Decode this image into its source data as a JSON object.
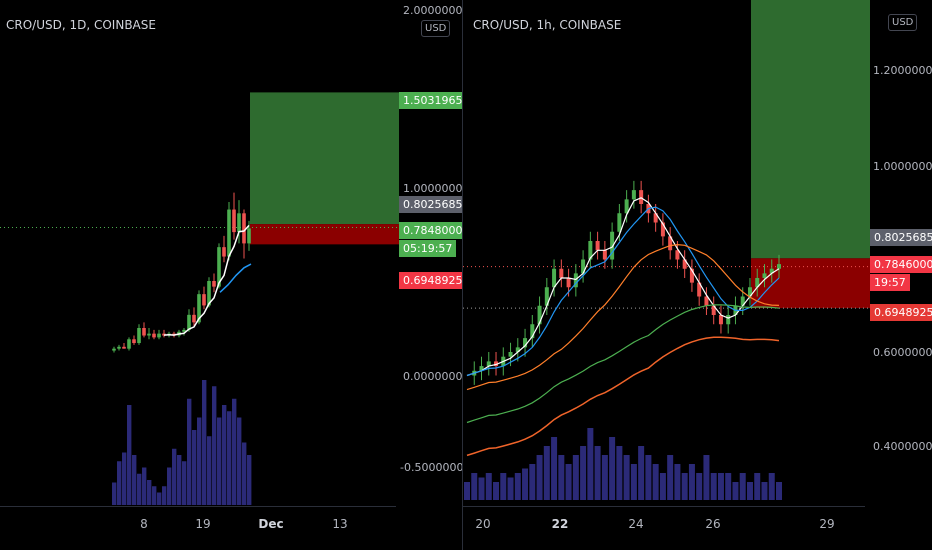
{
  "colors": {
    "up": "#4caf50",
    "down": "#ef5350",
    "profit_zone": "#2e6b2f",
    "loss_zone": "#8b0000",
    "volume": "#2b2a78",
    "ma_white": "#ffffff",
    "ma_blue": "#2196f3",
    "ma_orange": "#ff7f2a",
    "ma_green": "#4caf50",
    "ma_darkorange": "#f0642a"
  },
  "left_chart": {
    "title": "CRO/USD, 1D, COINBASE",
    "currency_button": "USD",
    "y_ticks": [
      "2.00000000",
      "1.00000000",
      "0.00000000",
      "-0.50000000"
    ],
    "x_ticks": [
      {
        "label": "8",
        "bold": false
      },
      {
        "label": "19",
        "bold": false
      },
      {
        "label": "Dec",
        "bold": true
      },
      {
        "label": "13",
        "bold": false
      }
    ],
    "tags": {
      "target": "1.50319655",
      "entry": "0.80256850",
      "last_price": "0.78480000",
      "countdown": "05:19:57",
      "stop": "0.69489253"
    }
  },
  "right_chart": {
    "title": "CRO/USD, 1h, COINBASE",
    "currency_button": "USD",
    "y_ticks": [
      "1.20000000",
      "1.00000000",
      "0.60000000",
      "0.40000000"
    ],
    "x_ticks": [
      {
        "label": "20",
        "bold": false
      },
      {
        "label": "22",
        "bold": true
      },
      {
        "label": "24",
        "bold": false
      },
      {
        "label": "26",
        "bold": false
      },
      {
        "label": "29",
        "bold": false
      }
    ],
    "tags": {
      "entry": "0.80256850",
      "last_price": "0.78460000",
      "countdown": "19:57",
      "stop": "0.69489253"
    }
  },
  "chart_data": [
    {
      "type": "candlestick",
      "title": "CRO/USD, 1D, COINBASE",
      "currency": "USD",
      "x_tick_labels": [
        "8",
        "19",
        "Dec",
        "13"
      ],
      "y_tick_labels": [
        "2.00000000",
        "1.00000000",
        "0.00000000",
        "-0.50000000"
      ],
      "long_position": {
        "entry": 0.8025685,
        "target": 1.50319655,
        "stop": 0.69489253
      },
      "last_price": 0.7848,
      "candles": [
        {
          "o": 0.13,
          "h": 0.15,
          "l": 0.12,
          "c": 0.14
        },
        {
          "o": 0.14,
          "h": 0.16,
          "l": 0.13,
          "c": 0.15
        },
        {
          "o": 0.15,
          "h": 0.17,
          "l": 0.14,
          "c": 0.14
        },
        {
          "o": 0.14,
          "h": 0.2,
          "l": 0.13,
          "c": 0.19
        },
        {
          "o": 0.19,
          "h": 0.21,
          "l": 0.16,
          "c": 0.17
        },
        {
          "o": 0.17,
          "h": 0.27,
          "l": 0.16,
          "c": 0.25
        },
        {
          "o": 0.25,
          "h": 0.28,
          "l": 0.2,
          "c": 0.21
        },
        {
          "o": 0.21,
          "h": 0.25,
          "l": 0.19,
          "c": 0.22
        },
        {
          "o": 0.22,
          "h": 0.24,
          "l": 0.19,
          "c": 0.2
        },
        {
          "o": 0.2,
          "h": 0.24,
          "l": 0.19,
          "c": 0.22
        },
        {
          "o": 0.22,
          "h": 0.24,
          "l": 0.2,
          "c": 0.21
        },
        {
          "o": 0.21,
          "h": 0.23,
          "l": 0.2,
          "c": 0.22
        },
        {
          "o": 0.22,
          "h": 0.23,
          "l": 0.2,
          "c": 0.21
        },
        {
          "o": 0.21,
          "h": 0.24,
          "l": 0.2,
          "c": 0.23
        },
        {
          "o": 0.23,
          "h": 0.25,
          "l": 0.21,
          "c": 0.24
        },
        {
          "o": 0.24,
          "h": 0.35,
          "l": 0.23,
          "c": 0.32
        },
        {
          "o": 0.32,
          "h": 0.36,
          "l": 0.26,
          "c": 0.28
        },
        {
          "o": 0.28,
          "h": 0.45,
          "l": 0.27,
          "c": 0.43
        },
        {
          "o": 0.43,
          "h": 0.47,
          "l": 0.35,
          "c": 0.37
        },
        {
          "o": 0.37,
          "h": 0.52,
          "l": 0.36,
          "c": 0.5
        },
        {
          "o": 0.5,
          "h": 0.54,
          "l": 0.44,
          "c": 0.47
        },
        {
          "o": 0.47,
          "h": 0.7,
          "l": 0.46,
          "c": 0.68
        },
        {
          "o": 0.68,
          "h": 0.74,
          "l": 0.6,
          "c": 0.63
        },
        {
          "o": 0.63,
          "h": 0.92,
          "l": 0.61,
          "c": 0.88
        },
        {
          "o": 0.88,
          "h": 0.97,
          "l": 0.72,
          "c": 0.76
        },
        {
          "o": 0.76,
          "h": 0.93,
          "l": 0.7,
          "c": 0.86
        },
        {
          "o": 0.86,
          "h": 0.88,
          "l": 0.62,
          "c": 0.7
        },
        {
          "o": 0.7,
          "h": 0.82,
          "l": 0.66,
          "c": 0.78
        }
      ],
      "volume": [
        0.18,
        0.35,
        0.42,
        0.8,
        0.4,
        0.25,
        0.3,
        0.2,
        0.15,
        0.1,
        0.15,
        0.3,
        0.45,
        0.4,
        0.35,
        0.85,
        0.6,
        0.7,
        1.0,
        0.55,
        0.95,
        0.7,
        0.8,
        0.75,
        0.85,
        0.7,
        0.5,
        0.4
      ]
    },
    {
      "type": "candlestick",
      "title": "CRO/USD, 1h, COINBASE",
      "currency": "USD",
      "x_tick_labels": [
        "20",
        "22",
        "24",
        "26",
        "29"
      ],
      "y_tick_labels": [
        "1.20000000",
        "1.00000000",
        "0.60000000",
        "0.40000000"
      ],
      "long_position": {
        "entry": 0.8025685,
        "stop": 0.69489253
      },
      "last_price": 0.7846,
      "price_path": [
        0.55,
        0.56,
        0.57,
        0.58,
        0.57,
        0.59,
        0.6,
        0.61,
        0.63,
        0.66,
        0.7,
        0.74,
        0.78,
        0.76,
        0.74,
        0.77,
        0.8,
        0.84,
        0.82,
        0.8,
        0.86,
        0.9,
        0.93,
        0.95,
        0.92,
        0.9,
        0.88,
        0.85,
        0.82,
        0.8,
        0.78,
        0.75,
        0.72,
        0.7,
        0.68,
        0.66,
        0.68,
        0.7,
        0.72,
        0.74,
        0.76,
        0.77,
        0.78,
        0.79
      ],
      "volume": [
        0.2,
        0.3,
        0.25,
        0.3,
        0.2,
        0.3,
        0.25,
        0.3,
        0.35,
        0.4,
        0.5,
        0.6,
        0.7,
        0.5,
        0.4,
        0.5,
        0.6,
        0.8,
        0.6,
        0.5,
        0.7,
        0.6,
        0.5,
        0.4,
        0.6,
        0.5,
        0.4,
        0.3,
        0.5,
        0.4,
        0.3,
        0.4,
        0.3,
        0.5,
        0.3,
        0.3,
        0.3,
        0.2,
        0.3,
        0.2,
        0.3,
        0.2,
        0.3,
        0.2
      ]
    }
  ]
}
